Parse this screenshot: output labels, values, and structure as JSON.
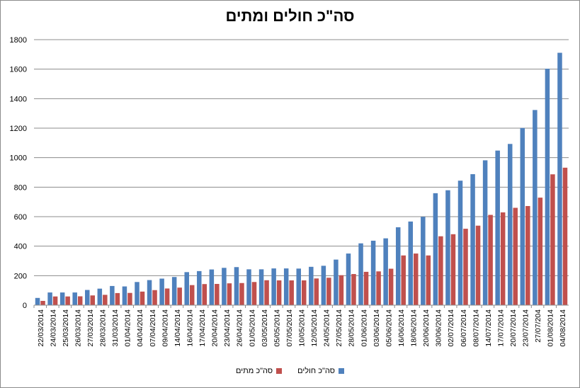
{
  "chart_data": {
    "type": "bar",
    "title": "סה\"כ חולים ומתים",
    "xlabel": "",
    "ylabel": "",
    "ylim": [
      0,
      1800
    ],
    "yticks": [
      0,
      200,
      400,
      600,
      800,
      1000,
      1200,
      1400,
      1600,
      1800
    ],
    "grid": true,
    "legend_position": "bottom",
    "categories": [
      "22/03/2014",
      "24/03/2014",
      "25/03/2014",
      "26/03/2014",
      "27/03/2014",
      "28/03/2014",
      "31/03/2014",
      "01/04/2014",
      "04/04/2014",
      "07/04/2014",
      "09/04/2014",
      "14/04/2014",
      "16/04/2014",
      "17/04/2014",
      "20/04/2014",
      "23/04/2014",
      "26/04/2014",
      "01/05/2014",
      "03/05/2014",
      "05/05/2014",
      "07/05/2014",
      "10/05/2014",
      "12/05/2014",
      "24/05/2014",
      "27/05/2014",
      "28/05/2014",
      "01/06/2014",
      "03/06/2014",
      "05/06/2014",
      "16/06/2014",
      "18/06/2014",
      "20/06/2014",
      "30/06/2014",
      "02/07/2014",
      "06/07/2014",
      "08/07/2014",
      "14/07/2014",
      "17/07/2014",
      "20/07/2014",
      "23/07/2014",
      "27/07/204",
      "01/08/2014",
      "04/08/2014"
    ],
    "series": [
      {
        "name": "סה\"כ חולים",
        "color": "#4f81bd",
        "values": [
          49,
          86,
          86,
          86,
          103,
          112,
          130,
          127,
          157,
          170,
          180,
          191,
          224,
          231,
          242,
          253,
          258,
          243,
          243,
          249,
          249,
          248,
          260,
          267,
          309,
          350,
          419,
          437,
          453,
          528,
          567,
          599,
          759,
          779,
          844,
          888,
          982,
          1048,
          1093,
          1201,
          1323,
          1603,
          1711
        ]
      },
      {
        "name": "סה\"כ מתים",
        "color": "#c0504d",
        "values": [
          29,
          59,
          59,
          60,
          66,
          70,
          82,
          83,
          92,
          102,
          113,
          119,
          136,
          143,
          144,
          148,
          150,
          157,
          169,
          168,
          168,
          168,
          181,
          186,
          203,
          211,
          226,
          229,
          247,
          337,
          350,
          337,
          467,
          481,
          518,
          539,
          612,
          629,
          660,
          672,
          729,
          887,
          932
        ]
      }
    ]
  }
}
